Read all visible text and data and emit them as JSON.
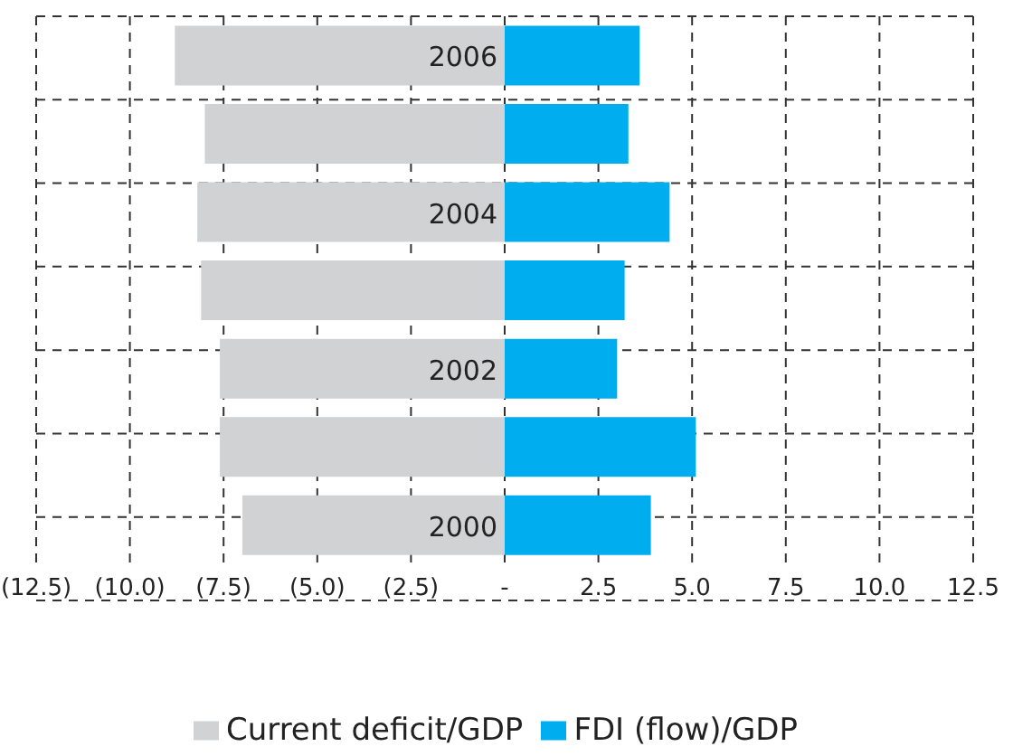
{
  "chart_data": {
    "type": "bar",
    "orientation": "horizontal",
    "stacked": true,
    "categories": [
      "2006",
      null,
      "2004",
      null,
      "2002",
      null,
      "2000"
    ],
    "series": [
      {
        "name": "Current deficit/GDP",
        "color": "#d1d2d4",
        "values": [
          -8.8,
          -8.0,
          -8.2,
          -8.1,
          -7.6,
          -7.6,
          -7.0
        ]
      },
      {
        "name": "FDI (flow)/GDP",
        "color": "#00adef",
        "values": [
          3.6,
          3.3,
          4.4,
          3.2,
          3.0,
          5.1,
          3.9
        ]
      }
    ],
    "xlim": [
      -12.5,
      12.5
    ],
    "xticks": [
      {
        "value": -12.5,
        "label": "(12.5)"
      },
      {
        "value": -10,
        "label": "(10.0)"
      },
      {
        "value": -7.5,
        "label": "(7.5)"
      },
      {
        "value": -5,
        "label": "(5.0)"
      },
      {
        "value": -2.5,
        "label": "(2.5)"
      },
      {
        "value": 0,
        "label": "-"
      },
      2.5,
      {
        "value": 5,
        "label": "5.0"
      },
      7.5,
      {
        "value": 10,
        "label": "10.0"
      },
      12.5
    ],
    "grid": true,
    "legend": "bottom"
  }
}
